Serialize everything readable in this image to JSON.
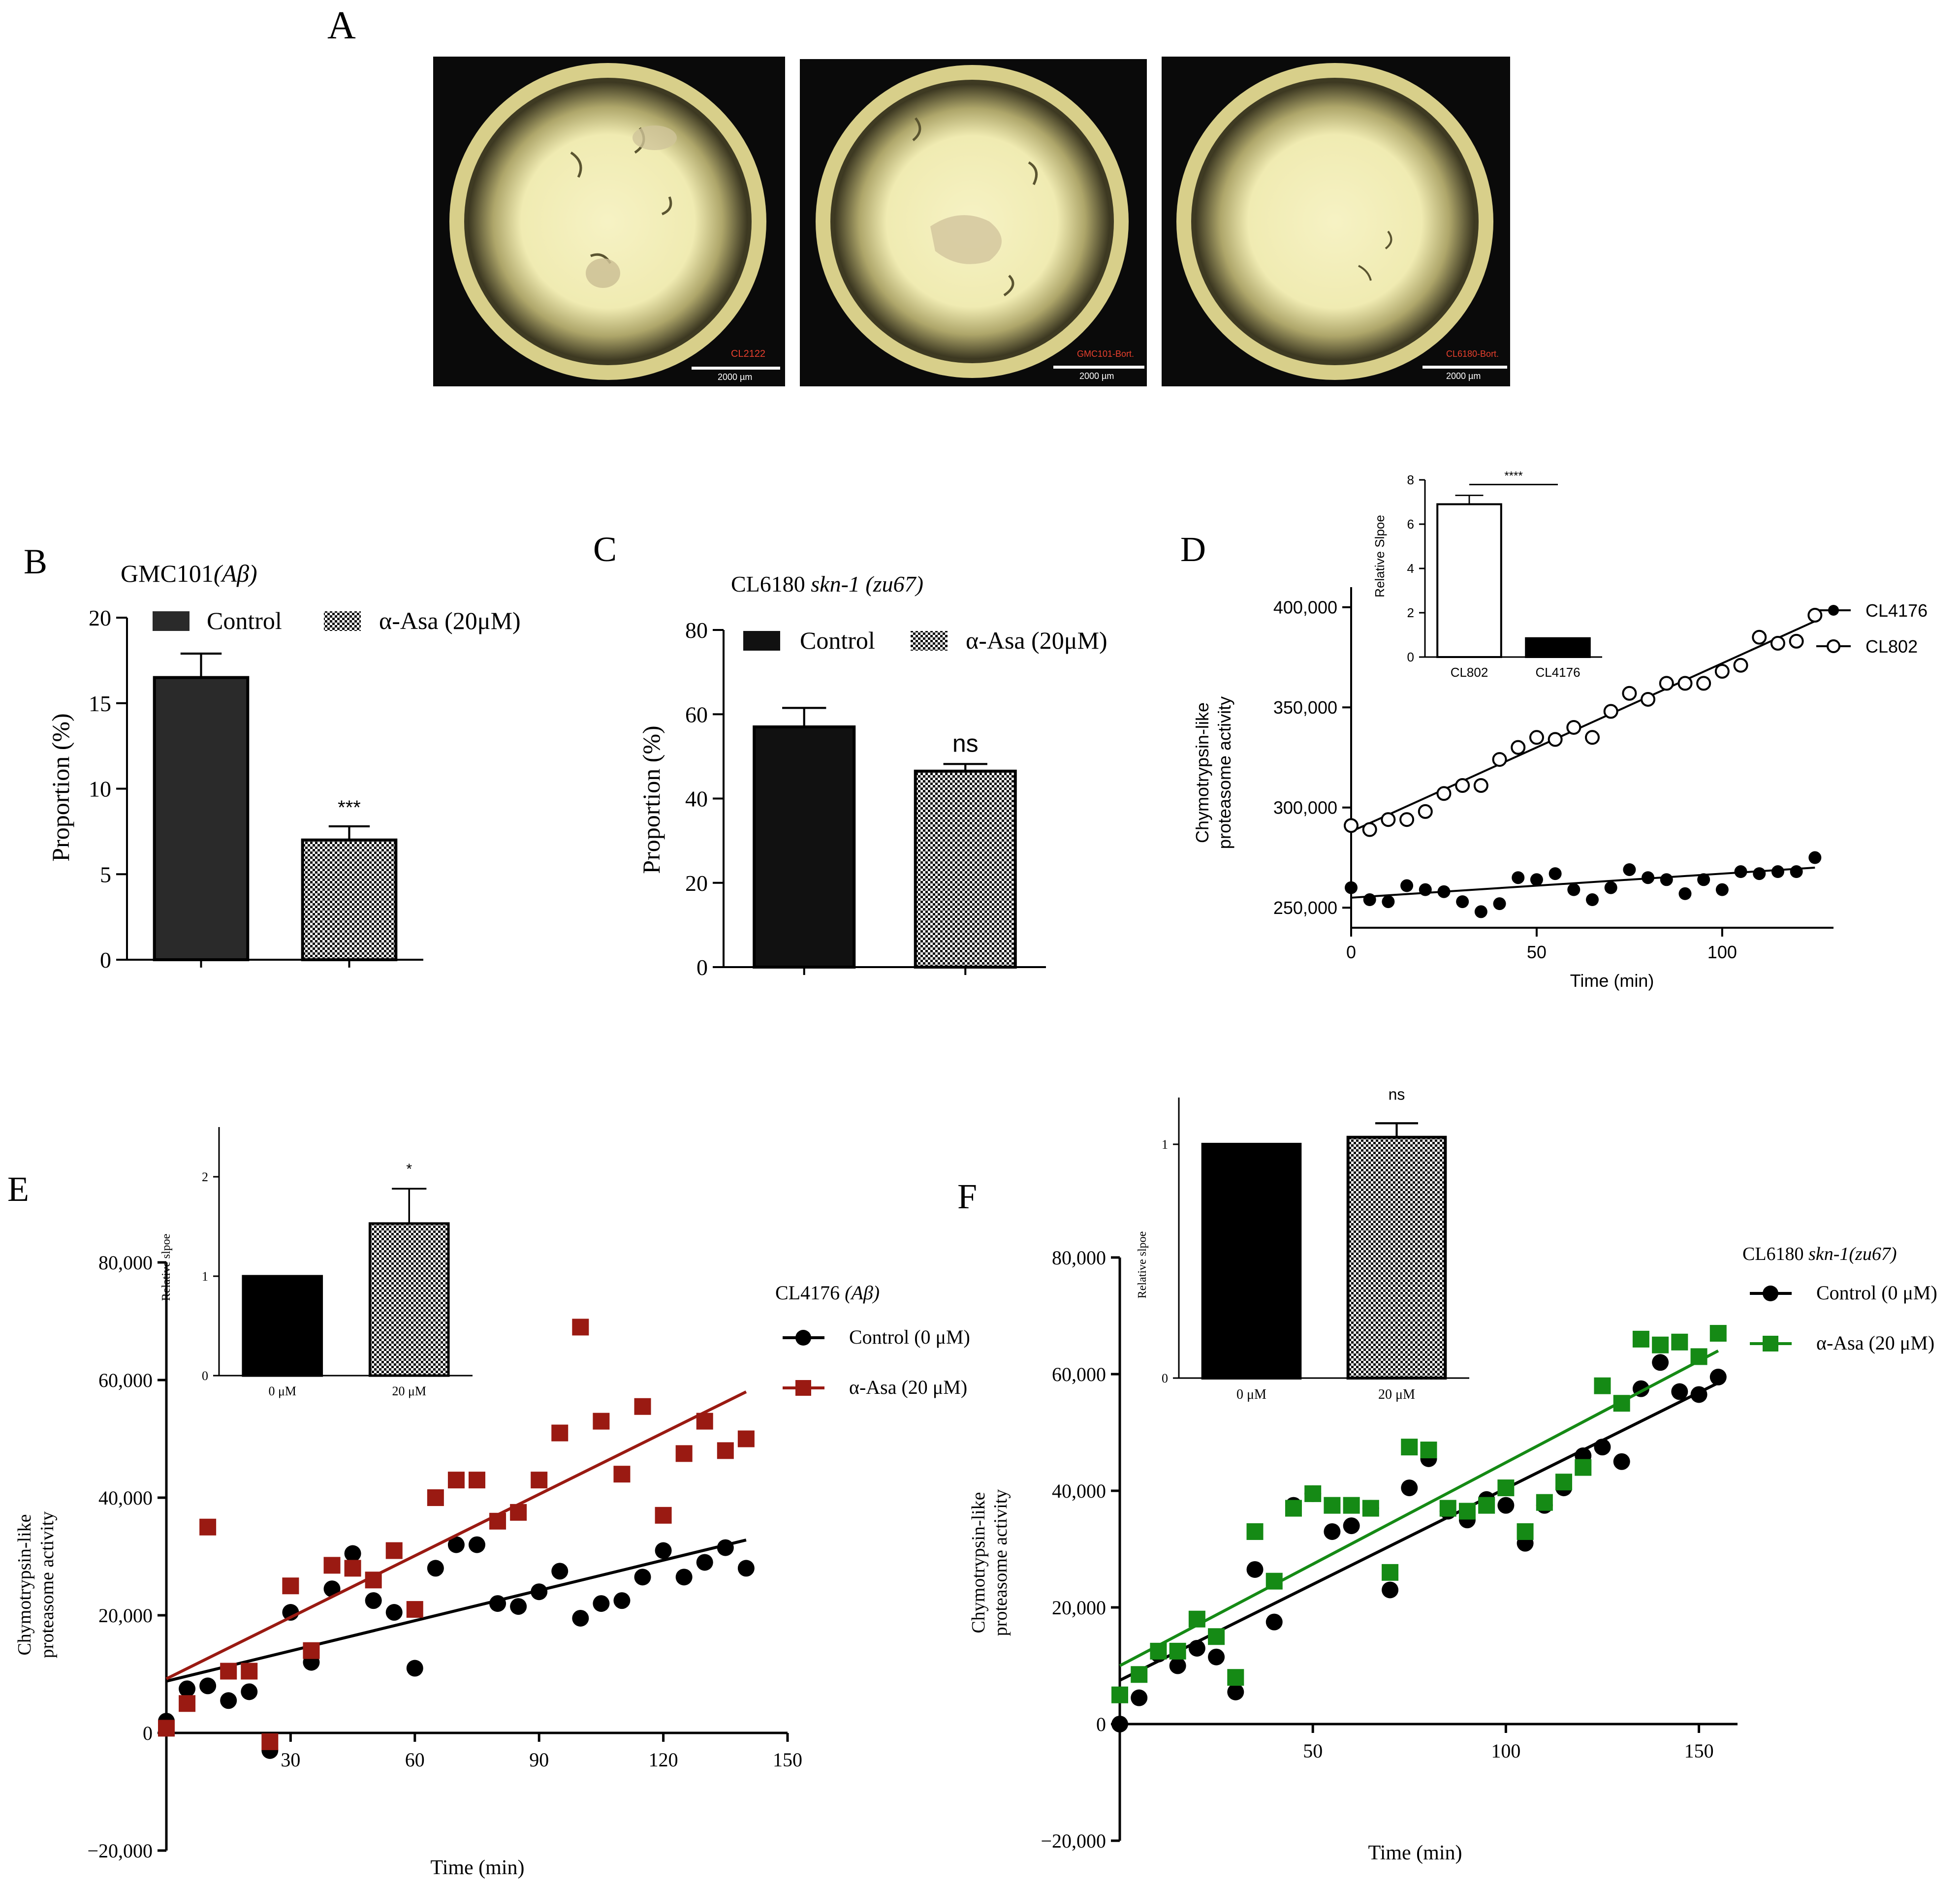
{
  "panel_labels": {
    "A": "A",
    "B": "B",
    "C": "C",
    "D": "D",
    "E": "E",
    "F": "F"
  },
  "panel_a": {
    "images": [
      {
        "label": "CL2122",
        "scale": "2000 µm"
      },
      {
        "label": "GMC101-Bort.",
        "scale": "2000 µm"
      },
      {
        "label": "CL6180-Bort.",
        "scale": "2000 µm"
      }
    ],
    "colors": {
      "background": "#0a0a0a",
      "rim": "#d8cf8a",
      "plate": "#f2eeb4",
      "glow": "#e8e2a0",
      "label": "#e8402e"
    }
  },
  "chart_data": [
    {
      "id": "B",
      "type": "bar",
      "title": "GMC101",
      "title_italic": "(Aβ)",
      "categories": [
        "Control",
        "α-Asa (20μM)"
      ],
      "values": [
        16.5,
        7.0
      ],
      "errors": [
        1.4,
        0.8
      ],
      "significance": [
        "",
        "***"
      ],
      "ylabel": "Proportion (%)",
      "ylim": [
        0,
        20
      ],
      "yticks": [
        0,
        5,
        10,
        15,
        20
      ],
      "legend": [
        "Control",
        "α-Asa (20μM)"
      ],
      "fills": [
        "#2a2a2a",
        "checker"
      ]
    },
    {
      "id": "C",
      "type": "bar",
      "title": "CL6180 ",
      "title_italic": "skn-1 (zu67)",
      "categories": [
        "Control",
        "α-Asa (20μM)"
      ],
      "values": [
        57,
        46.5
      ],
      "errors": [
        4.5,
        1.7
      ],
      "significance": [
        "",
        "ns"
      ],
      "ylabel": "Proportion (%)",
      "ylim": [
        0,
        80
      ],
      "yticks": [
        0,
        20,
        40,
        60,
        80
      ],
      "legend": [
        "Control",
        "α-Asa (20μM)"
      ],
      "fills": [
        "#111111",
        "checker"
      ]
    },
    {
      "id": "D",
      "type": "scatter",
      "xlabel": "Time (min)",
      "ylabel": [
        "Chymotrypsin-like",
        "proteasome activity"
      ],
      "xlim": [
        0,
        130
      ],
      "ylim": [
        240000,
        410000
      ],
      "xticks": [
        0,
        50,
        100
      ],
      "yticks": [
        250000,
        300000,
        350000,
        400000
      ],
      "ytick_labels": [
        "250,000",
        "300,000",
        "350,000",
        "400,000"
      ],
      "legend": [
        "CL4176",
        "CL802"
      ],
      "series": [
        {
          "name": "CL4176",
          "marker": "filled-circle",
          "x": [
            0,
            5,
            10,
            15,
            20,
            25,
            30,
            35,
            40,
            45,
            50,
            55,
            60,
            65,
            70,
            75,
            80,
            85,
            90,
            95,
            100,
            105,
            110,
            115,
            120,
            125
          ],
          "y": [
            260000,
            254000,
            253000,
            261000,
            259000,
            258000,
            253000,
            248000,
            252000,
            265000,
            264000,
            267000,
            259000,
            254000,
            260000,
            269000,
            265000,
            264000,
            257000,
            264000,
            259000,
            268000,
            267000,
            268000,
            268000,
            275000
          ],
          "fit": [
            255000,
            270000
          ]
        },
        {
          "name": "CL802",
          "marker": "open-circle",
          "x": [
            0,
            5,
            10,
            15,
            20,
            25,
            30,
            35,
            40,
            45,
            50,
            55,
            60,
            65,
            70,
            75,
            80,
            85,
            90,
            95,
            100,
            105,
            110,
            115,
            120,
            125
          ],
          "y": [
            291000,
            289000,
            294000,
            294000,
            298000,
            307000,
            311000,
            311000,
            324000,
            330000,
            335000,
            334000,
            340000,
            335000,
            348000,
            357000,
            354000,
            362000,
            362000,
            362000,
            368000,
            371000,
            385000,
            382000,
            383000,
            396000
          ],
          "fit": [
            288000,
            393000
          ]
        }
      ],
      "inset": {
        "type": "bar",
        "categories": [
          "CL802",
          "CL4176"
        ],
        "values": [
          6.9,
          0.85
        ],
        "errors": [
          0.4,
          0
        ],
        "ylabel": "Relative Slpoe",
        "ylim": [
          0,
          8
        ],
        "yticks": [
          0,
          2,
          4,
          6,
          8
        ],
        "significance": "****",
        "fills": [
          "#ffffff",
          "#000000"
        ]
      }
    },
    {
      "id": "E",
      "type": "scatter",
      "legend_title": "CL4176 ",
      "legend_title_italic": "(Aβ)",
      "legend": [
        "Control (0 μM)",
        "α-Asa (20 μM)"
      ],
      "xlabel": "Time (min)",
      "ylabel": [
        "Chymotrypsin-like",
        "proteasome activity"
      ],
      "xlim": [
        0,
        150
      ],
      "ylim": [
        -20000,
        80000
      ],
      "xticks": [
        30,
        60,
        90,
        120,
        150
      ],
      "yticks": [
        -20000,
        0,
        20000,
        40000,
        60000,
        80000
      ],
      "ytick_labels": [
        "−20,000",
        "0",
        "20,000",
        "40,000",
        "60,000",
        "80,000"
      ],
      "colors": {
        "control": "#000000",
        "treated": "#9a1a12"
      },
      "series": [
        {
          "name": "Control (0 μM)",
          "marker": "circle",
          "x": [
            0,
            5,
            10,
            15,
            20,
            25,
            30,
            35,
            40,
            45,
            50,
            55,
            60,
            65,
            70,
            75,
            80,
            85,
            90,
            95,
            100,
            105,
            110,
            115,
            120,
            125,
            130,
            135,
            140
          ],
          "y": [
            2000,
            7500,
            8000,
            5500,
            7000,
            -3000,
            20500,
            12000,
            24500,
            30500,
            22500,
            20500,
            11000,
            28000,
            32000,
            32000,
            22000,
            21500,
            24000,
            27500,
            19500,
            22000,
            22500,
            26500,
            31000,
            26500,
            29000,
            31500,
            28000
          ],
          "fit": [
            8800,
            32800
          ]
        },
        {
          "name": "α-Asa (20 μM)",
          "marker": "square",
          "x": [
            0,
            5,
            10,
            15,
            20,
            25,
            30,
            35,
            40,
            45,
            50,
            55,
            60,
            65,
            70,
            75,
            80,
            85,
            90,
            95,
            100,
            105,
            110,
            115,
            120,
            125,
            130,
            135,
            140
          ],
          "y": [
            800,
            5000,
            35000,
            10500,
            10500,
            -1500,
            25000,
            14000,
            28500,
            28000,
            26000,
            31000,
            21000,
            40000,
            43000,
            43000,
            36000,
            37500,
            43000,
            51000,
            69000,
            53000,
            44000,
            55500,
            37000,
            47500,
            53000,
            48000,
            50000
          ],
          "fit": [
            9200,
            58000
          ]
        }
      ],
      "inset": {
        "type": "bar",
        "categories": [
          "0 μM",
          "20 μM"
        ],
        "values": [
          1.0,
          1.53
        ],
        "errors": [
          0,
          0.35
        ],
        "ylabel": "Relative slpoe",
        "ylim": [
          0,
          2.5
        ],
        "yticks": [
          0,
          1,
          2
        ],
        "significance": "*",
        "fills": [
          "#000000",
          "checker"
        ]
      }
    },
    {
      "id": "F",
      "type": "scatter",
      "legend_title": "CL6180 ",
      "legend_title_italic": "skn-1(zu67)",
      "legend": [
        "Control (0 μM)",
        "α-Asa (20 μM)"
      ],
      "xlabel": "Time (min)",
      "ylabel": [
        "Chymotrypsin-like",
        "proteasome activity"
      ],
      "xlim": [
        0,
        160
      ],
      "ylim": [
        -20000,
        80000
      ],
      "xticks": [
        50,
        100,
        150
      ],
      "yticks": [
        -20000,
        0,
        20000,
        40000,
        60000,
        80000
      ],
      "ytick_labels": [
        "−20,000",
        "0",
        "20,000",
        "40,000",
        "60,000",
        "80,000"
      ],
      "colors": {
        "control": "#000000",
        "treated": "#158a15"
      },
      "series": [
        {
          "name": "Control (0 μM)",
          "marker": "circle",
          "x": [
            0,
            5,
            10,
            15,
            20,
            25,
            30,
            35,
            40,
            45,
            50,
            55,
            60,
            65,
            70,
            75,
            80,
            85,
            90,
            95,
            100,
            105,
            110,
            115,
            120,
            125,
            130,
            135,
            140,
            145,
            150,
            155
          ],
          "y": [
            0,
            4500,
            12000,
            10000,
            13000,
            11500,
            5500,
            26500,
            17500,
            37500,
            39500,
            33000,
            34000,
            37000,
            23000,
            40500,
            45500,
            36500,
            35000,
            38500,
            37500,
            31000,
            37500,
            40500,
            46000,
            47500,
            45000,
            57500,
            62000,
            57000,
            56500,
            59500
          ],
          "fit": [
            7500,
            58500
          ]
        },
        {
          "name": "α-Asa (20 μM)",
          "marker": "square",
          "x": [
            0,
            5,
            10,
            15,
            20,
            25,
            30,
            35,
            40,
            45,
            50,
            55,
            60,
            65,
            70,
            75,
            80,
            85,
            90,
            95,
            100,
            105,
            110,
            115,
            120,
            125,
            130,
            135,
            140,
            145,
            150,
            155
          ],
          "y": [
            5000,
            8500,
            12500,
            12500,
            18000,
            15000,
            8000,
            33000,
            24500,
            37000,
            39500,
            37500,
            37500,
            37000,
            26000,
            47500,
            47000,
            37000,
            36500,
            37500,
            40500,
            33000,
            38000,
            41500,
            44000,
            58000,
            55000,
            66000,
            65000,
            65500,
            63000,
            67000
          ],
          "fit": [
            10000,
            64000
          ]
        }
      ],
      "inset": {
        "type": "bar",
        "categories": [
          "0 μM",
          "20 μM"
        ],
        "values": [
          1.0,
          1.03
        ],
        "errors": [
          0,
          0.06
        ],
        "ylabel": "Relative slpoe",
        "ylim": [
          0,
          1.2
        ],
        "yticks": [
          0,
          1
        ],
        "significance": "ns",
        "fills": [
          "#000000",
          "checker"
        ]
      }
    }
  ]
}
